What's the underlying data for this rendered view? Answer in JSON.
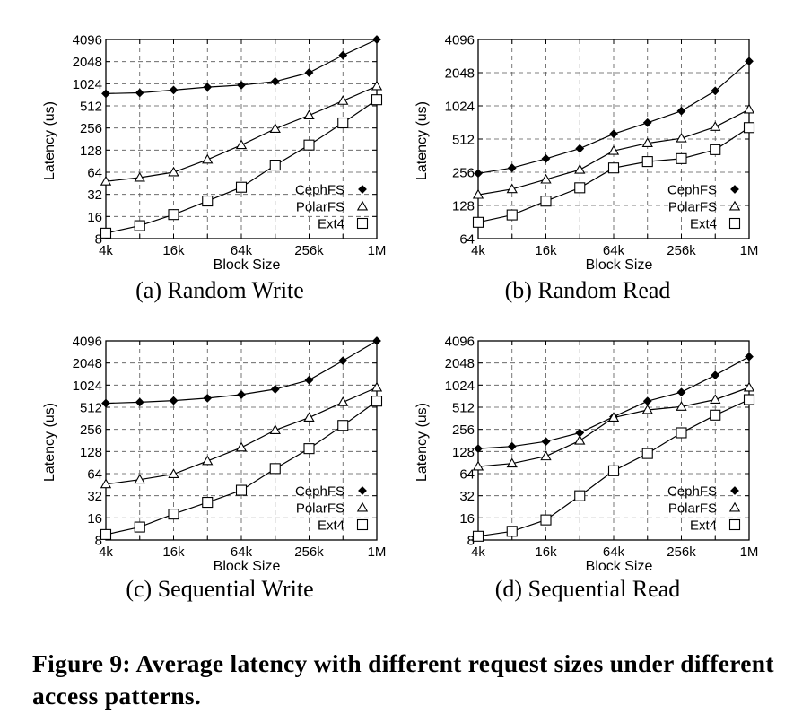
{
  "figure": {
    "caption": "Figure 9:  Average latency with different request sizes under different access patterns."
  },
  "legend_markers": {
    "CephFS": "filled-diamond",
    "PolarFS": "open-triangle",
    "Ext4": "open-square"
  },
  "chart_data": [
    {
      "type": "line",
      "subtitle": "(a) Random Write",
      "xlabel": "Block Size",
      "ylabel": "Latency (us)",
      "x_scale": "log2",
      "y_scale": "log2",
      "grid": true,
      "legend_position": "bottom-right",
      "x": [
        "4k",
        "8k",
        "16k",
        "32k",
        "64k",
        "128k",
        "256k",
        "512k",
        "1M"
      ],
      "xticks": [
        "4k",
        "16k",
        "64k",
        "256k",
        "1M"
      ],
      "yticks": [
        8,
        16,
        32,
        64,
        128,
        256,
        512,
        1024,
        2048,
        4096
      ],
      "ylim": [
        8,
        4096
      ],
      "series": [
        {
          "name": "CephFS",
          "values": [
            750,
            770,
            840,
            920,
            980,
            1100,
            1450,
            2500,
            4096
          ]
        },
        {
          "name": "PolarFS",
          "values": [
            48,
            54,
            64,
            95,
            150,
            250,
            380,
            600,
            950
          ]
        },
        {
          "name": "Ext4",
          "values": [
            9.5,
            12,
            17,
            26,
            40,
            80,
            150,
            300,
            620
          ]
        }
      ]
    },
    {
      "type": "line",
      "subtitle": "(b) Random Read",
      "xlabel": "Block Size",
      "ylabel": "Latency (us)",
      "x_scale": "log2",
      "y_scale": "log2",
      "grid": true,
      "legend_position": "bottom-right",
      "x": [
        "4k",
        "8k",
        "16k",
        "32k",
        "64k",
        "128k",
        "256k",
        "512k",
        "1M"
      ],
      "xticks": [
        "4k",
        "16k",
        "64k",
        "256k",
        "1M"
      ],
      "yticks": [
        64,
        128,
        256,
        512,
        1024,
        2048,
        4096
      ],
      "ylim": [
        64,
        4096
      ],
      "series": [
        {
          "name": "CephFS",
          "values": [
            250,
            280,
            340,
            420,
            570,
            720,
            920,
            1400,
            2600
          ]
        },
        {
          "name": "PolarFS",
          "values": [
            160,
            180,
            220,
            270,
            400,
            470,
            520,
            660,
            950
          ]
        },
        {
          "name": "Ext4",
          "values": [
            90,
            105,
            140,
            185,
            280,
            320,
            340,
            410,
            650
          ]
        }
      ]
    },
    {
      "type": "line",
      "subtitle": "(c) Sequential Write",
      "xlabel": "Block Size",
      "ylabel": "Latency (us)",
      "x_scale": "log2",
      "y_scale": "log2",
      "grid": true,
      "legend_position": "bottom-right",
      "x": [
        "4k",
        "8k",
        "16k",
        "32k",
        "64k",
        "128k",
        "256k",
        "512k",
        "1M"
      ],
      "xticks": [
        "4k",
        "16k",
        "64k",
        "256k",
        "1M"
      ],
      "yticks": [
        8,
        16,
        32,
        64,
        128,
        256,
        512,
        1024,
        2048,
        4096
      ],
      "ylim": [
        8,
        4096
      ],
      "series": [
        {
          "name": "CephFS",
          "values": [
            580,
            600,
            630,
            680,
            760,
            900,
            1200,
            2200,
            4096
          ]
        },
        {
          "name": "PolarFS",
          "values": [
            46,
            53,
            63,
            95,
            145,
            250,
            370,
            600,
            950
          ]
        },
        {
          "name": "Ext4",
          "values": [
            9.5,
            12,
            18,
            26,
            38,
            75,
            140,
            290,
            620
          ]
        }
      ]
    },
    {
      "type": "line",
      "subtitle": "(d) Sequential Read",
      "xlabel": "Block Size",
      "ylabel": "Latency (us)",
      "x_scale": "log2",
      "y_scale": "log2",
      "grid": true,
      "legend_position": "bottom-right",
      "x": [
        "4k",
        "8k",
        "16k",
        "32k",
        "64k",
        "128k",
        "256k",
        "512k",
        "1M"
      ],
      "xticks": [
        "4k",
        "16k",
        "64k",
        "256k",
        "1M"
      ],
      "yticks": [
        8,
        16,
        32,
        64,
        128,
        256,
        512,
        1024,
        2048,
        4096
      ],
      "ylim": [
        8,
        4096
      ],
      "series": [
        {
          "name": "CephFS",
          "values": [
            140,
            150,
            175,
            230,
            380,
            620,
            820,
            1400,
            2500
          ]
        },
        {
          "name": "PolarFS",
          "values": [
            80,
            88,
            110,
            180,
            370,
            470,
            520,
            650,
            950
          ]
        },
        {
          "name": "Ext4",
          "values": [
            9,
            10.5,
            15,
            32,
            70,
            120,
            230,
            400,
            650
          ]
        }
      ]
    }
  ]
}
